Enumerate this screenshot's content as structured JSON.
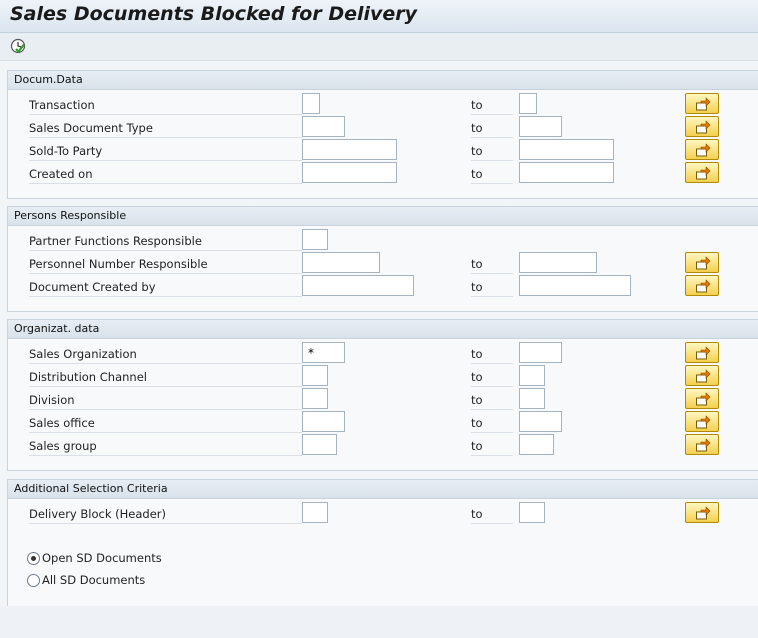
{
  "window": {
    "title": "Sales Documents Blocked for Delivery"
  },
  "toolbar": {
    "execute_icon": "execute-clock-icon"
  },
  "groups": {
    "docum_data": {
      "header": "Docum.Data",
      "rows": {
        "transaction": {
          "label": "Transaction",
          "from": "",
          "to_label": "to",
          "to": ""
        },
        "sales_doc_type": {
          "label": "Sales Document Type",
          "from": "",
          "to_label": "to",
          "to": ""
        },
        "sold_to": {
          "label": "Sold-To Party",
          "from": "",
          "to_label": "to",
          "to": ""
        },
        "created_on": {
          "label": "Created on",
          "from": "",
          "to_label": "to",
          "to": ""
        }
      }
    },
    "persons": {
      "header": "Persons Responsible",
      "rows": {
        "partner_fn": {
          "label": "Partner Functions Responsible",
          "from": ""
        },
        "personnel_no": {
          "label": "Personnel Number Responsible",
          "from": "",
          "to_label": "to",
          "to": ""
        },
        "created_by": {
          "label": "Document Created by",
          "from": "",
          "to_label": "to",
          "to": ""
        }
      }
    },
    "organizat": {
      "header": "Organizat. data",
      "rows": {
        "sales_org": {
          "label": "Sales Organization",
          "from": "*",
          "to_label": "to",
          "to": ""
        },
        "distr_channel": {
          "label": "Distribution Channel",
          "from": "",
          "to_label": "to",
          "to": ""
        },
        "division": {
          "label": "Division",
          "from": "",
          "to_label": "to",
          "to": ""
        },
        "sales_office": {
          "label": "Sales office",
          "from": "",
          "to_label": "to",
          "to": ""
        },
        "sales_group": {
          "label": "Sales group",
          "from": "",
          "to_label": "to",
          "to": ""
        }
      }
    },
    "additional": {
      "header": "Additional Selection Criteria",
      "rows": {
        "delivery_block": {
          "label": "Delivery Block (Header)",
          "from": "",
          "to_label": "to",
          "to": ""
        }
      },
      "radios": {
        "open": {
          "label": "Open SD Documents",
          "selected": true
        },
        "all": {
          "label": "All SD Documents",
          "selected": false
        }
      }
    }
  },
  "icons": {
    "multiple_selection": "multiple-selection-arrow-icon"
  },
  "colors": {
    "button_yellow": "#f4d04e",
    "header_bg": "#dbe5ef"
  }
}
